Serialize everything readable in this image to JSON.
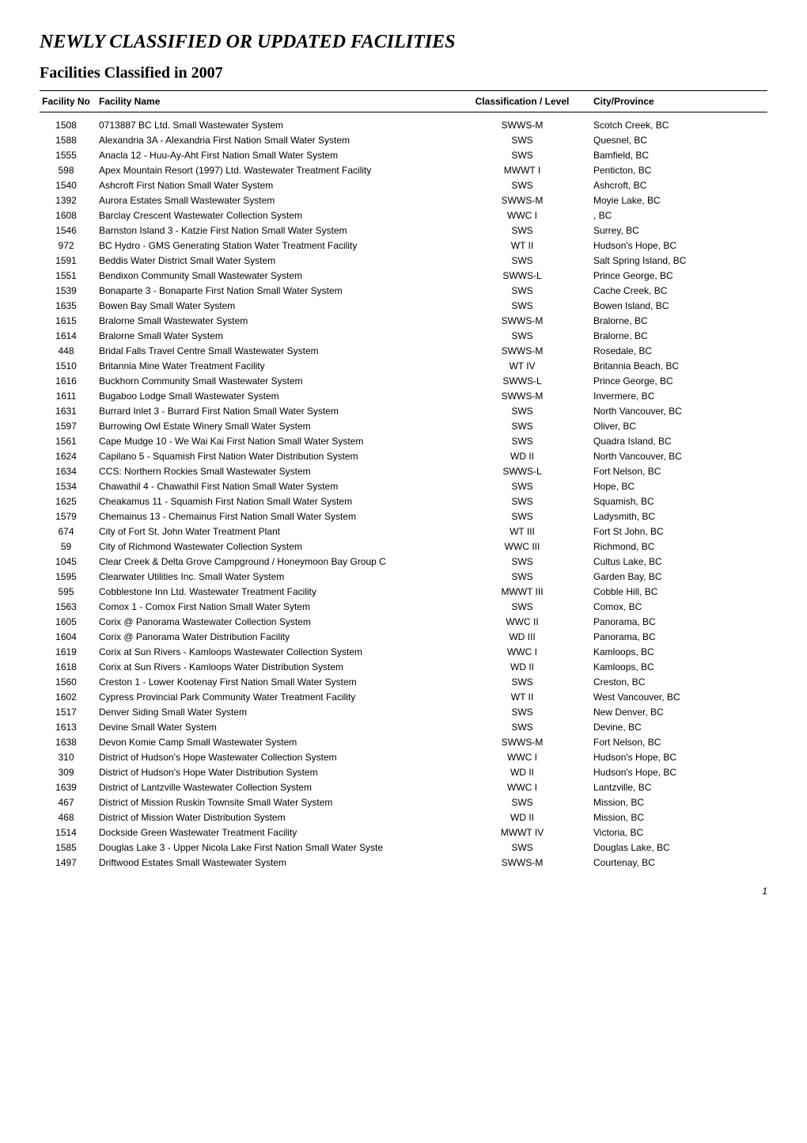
{
  "title": "NEWLY CLASSIFIED OR UPDATED FACILITIES",
  "subtitle": "Facilities Classified in 2007",
  "headers": {
    "facility_no": "Facility No",
    "facility_name": "Facility Name",
    "classification": "Classification / Level",
    "city": "City/Province"
  },
  "page_number": "1",
  "rows": [
    {
      "no": "1508",
      "name": "0713887 BC Ltd. Small Wastewater System",
      "class": "SWWS-M",
      "city": "Scotch Creek, BC"
    },
    {
      "no": "1588",
      "name": "Alexandria 3A - Alexandria First Nation Small Water System",
      "class": "SWS",
      "city": "Quesnel, BC"
    },
    {
      "no": "1555",
      "name": "Anacla 12 - Huu-Ay-Aht First Nation Small Water System",
      "class": "SWS",
      "city": "Bamfield, BC"
    },
    {
      "no": "598",
      "name": "Apex Mountain Resort (1997) Ltd.  Wastewater Treatment Facility",
      "class": "MWWT I",
      "city": "Penticton, BC"
    },
    {
      "no": "1540",
      "name": "Ashcroft First Nation Small Water System",
      "class": "SWS",
      "city": "Ashcroft, BC"
    },
    {
      "no": "1392",
      "name": "Aurora Estates Small Wastewater System",
      "class": "SWWS-M",
      "city": "Moyie Lake, BC"
    },
    {
      "no": "1608",
      "name": "Barclay Crescent Wastewater Collection System",
      "class": "WWC I",
      "city": ", BC"
    },
    {
      "no": "1546",
      "name": "Barnston Island 3 - Katzie First Nation Small Water System",
      "class": "SWS",
      "city": "Surrey, BC"
    },
    {
      "no": "972",
      "name": "BC Hydro - GMS Generating Station Water Treatment Facility",
      "class": "WT II",
      "city": "Hudson's Hope, BC"
    },
    {
      "no": "1591",
      "name": "Beddis Water District Small Water System",
      "class": "SWS",
      "city": "Salt Spring Island, BC"
    },
    {
      "no": "1551",
      "name": "Bendixon Community Small Wastewater System",
      "class": "SWWS-L",
      "city": "Prince George, BC"
    },
    {
      "no": "1539",
      "name": "Bonaparte 3 - Bonaparte First Nation Small Water System",
      "class": "SWS",
      "city": "Cache Creek, BC"
    },
    {
      "no": "1635",
      "name": "Bowen Bay Small Water System",
      "class": "SWS",
      "city": "Bowen Island, BC"
    },
    {
      "no": "1615",
      "name": "Bralorne Small Wastewater System",
      "class": "SWWS-M",
      "city": "Bralorne, BC"
    },
    {
      "no": "1614",
      "name": "Bralorne Small Water System",
      "class": "SWS",
      "city": "Bralorne, BC"
    },
    {
      "no": "448",
      "name": "Bridal Falls Travel Centre Small Wastewater System",
      "class": "SWWS-M",
      "city": "Rosedale, BC"
    },
    {
      "no": "1510",
      "name": "Britannia Mine Water Treatment Facility",
      "class": "WT IV",
      "city": "Britannia Beach, BC"
    },
    {
      "no": "1616",
      "name": "Buckhorn Community Small Wastewater System",
      "class": "SWWS-L",
      "city": "Prince George, BC"
    },
    {
      "no": "1611",
      "name": "Bugaboo Lodge Small Wastewater System",
      "class": "SWWS-M",
      "city": "Invermere, BC"
    },
    {
      "no": "1631",
      "name": "Burrard Inlet 3 - Burrard First Nation Small Water System",
      "class": "SWS",
      "city": "North Vancouver, BC"
    },
    {
      "no": "1597",
      "name": "Burrowing Owl Estate Winery Small Water System",
      "class": "SWS",
      "city": "Oliver, BC"
    },
    {
      "no": "1561",
      "name": "Cape Mudge 10 - We Wai Kai First Nation Small Water System",
      "class": "SWS",
      "city": "Quadra Island, BC"
    },
    {
      "no": "1624",
      "name": "Capilano 5 - Squamish First Nation Water Distribution System",
      "class": "WD II",
      "city": "North Vancouver, BC"
    },
    {
      "no": "1634",
      "name": "CCS: Northern Rockies Small Wastewater System",
      "class": "SWWS-L",
      "city": "Fort Nelson, BC"
    },
    {
      "no": "1534",
      "name": "Chawathil 4 - Chawathil First Nation Small Water System",
      "class": "SWS",
      "city": "Hope, BC"
    },
    {
      "no": "1625",
      "name": "Cheakamus 11 - Squamish First Nation Small Water System",
      "class": "SWS",
      "city": "Squamish, BC"
    },
    {
      "no": "1579",
      "name": "Chemainus 13 - Chemainus First Nation Small Water System",
      "class": "SWS",
      "city": "Ladysmith, BC"
    },
    {
      "no": "674",
      "name": "City of Fort St. John Water Treatment Plant",
      "class": "WT III",
      "city": "Fort St John, BC"
    },
    {
      "no": "59",
      "name": "City of Richmond Wastewater Collection System",
      "class": "WWC III",
      "city": "Richmond, BC"
    },
    {
      "no": "1045",
      "name": "Clear Creek & Delta Grove Campground / Honeymoon Bay Group C",
      "class": "SWS",
      "city": "Cultus Lake, BC"
    },
    {
      "no": "1595",
      "name": "Clearwater Utilities Inc. Small Water System",
      "class": "SWS",
      "city": "Garden Bay, BC"
    },
    {
      "no": "595",
      "name": "Cobblestone Inn Ltd. Wastewater Treatment Facility",
      "class": "MWWT III",
      "city": "Cobble Hill, BC"
    },
    {
      "no": "1563",
      "name": "Comox 1 - Comox First Nation Small Water Sytem",
      "class": "SWS",
      "city": "Comox, BC"
    },
    {
      "no": "1605",
      "name": "Corix @ Panorama Wastewater Collection System",
      "class": "WWC II",
      "city": "Panorama, BC"
    },
    {
      "no": "1604",
      "name": "Corix @ Panorama Water Distribution Facility",
      "class": "WD III",
      "city": "Panorama, BC"
    },
    {
      "no": "1619",
      "name": "Corix at Sun Rivers - Kamloops  Wastewater Collection System",
      "class": "WWC I",
      "city": "Kamloops, BC"
    },
    {
      "no": "1618",
      "name": "Corix at Sun Rivers - Kamloops  Water Distribution System",
      "class": "WD II",
      "city": "Kamloops, BC"
    },
    {
      "no": "1560",
      "name": "Creston 1 - Lower Kootenay First Nation Small Water System",
      "class": "SWS",
      "city": "Creston, BC"
    },
    {
      "no": "1602",
      "name": "Cypress Provincial Park Community Water Treatment Facility",
      "class": "WT II",
      "city": "West Vancouver, BC"
    },
    {
      "no": "1517",
      "name": "Denver Siding Small Water System",
      "class": "SWS",
      "city": "New Denver, BC"
    },
    {
      "no": "1613",
      "name": "Devine Small Water System",
      "class": "SWS",
      "city": "Devine, BC"
    },
    {
      "no": "1638",
      "name": "Devon Komie Camp Small Wastewater System",
      "class": "SWWS-M",
      "city": "Fort Nelson, BC"
    },
    {
      "no": "310",
      "name": "District of Hudson's Hope Wastewater Collection System",
      "class": "WWC I",
      "city": "Hudson's Hope, BC"
    },
    {
      "no": "309",
      "name": "District of Hudson's Hope Water Distribution System",
      "class": "WD II",
      "city": "Hudson's Hope, BC"
    },
    {
      "no": "1639",
      "name": "District of Lantzville Wastewater Collection System",
      "class": "WWC I",
      "city": "Lantzville, BC"
    },
    {
      "no": "467",
      "name": "District of Mission Ruskin Townsite Small Water System",
      "class": "SWS",
      "city": "Mission, BC"
    },
    {
      "no": "468",
      "name": "District of Mission Water Distribution System",
      "class": "WD II",
      "city": "Mission, BC"
    },
    {
      "no": "1514",
      "name": "Dockside Green Wastewater Treatment Facility",
      "class": "MWWT IV",
      "city": "Victoria, BC"
    },
    {
      "no": "1585",
      "name": "Douglas Lake 3 - Upper Nicola Lake First Nation Small Water Syste",
      "class": "SWS",
      "city": "Douglas Lake, BC"
    },
    {
      "no": "1497",
      "name": "Driftwood Estates Small Wastewater System",
      "class": "SWWS-M",
      "city": "Courtenay, BC"
    }
  ]
}
